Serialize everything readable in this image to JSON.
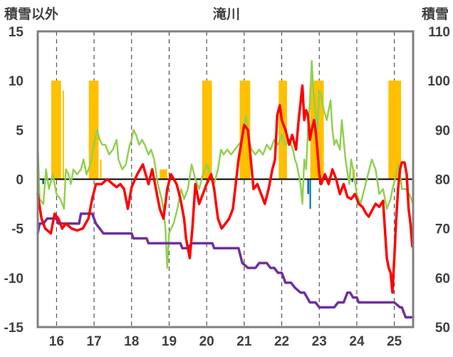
{
  "chart_data": {
    "type": "line",
    "title": "滝川",
    "left_axis_label": "積雪以外",
    "right_axis_label": "積雪",
    "x_ticks": [
      "16",
      "17",
      "18",
      "19",
      "20",
      "21",
      "22",
      "23",
      "24",
      "25"
    ],
    "xlim": [
      15.5,
      25.5
    ],
    "ylim_left": [
      -15,
      15
    ],
    "ylim_right": [
      50,
      110
    ],
    "left_ticks": [
      "15",
      "10",
      "5",
      "0",
      "-5",
      "-10",
      "-15"
    ],
    "right_ticks": [
      "110",
      "100",
      "90",
      "80",
      "70",
      "60",
      "50"
    ],
    "grid": "dashed vertical lines at day boundaries",
    "colors": {
      "red": "#ff0000",
      "green": "#92d050",
      "purple": "#7030a0",
      "orange": "#ffc000",
      "blue": "#0070c0",
      "axis": "#808080"
    },
    "series": [
      {
        "color": "red",
        "axis": "left",
        "points": [
          [
            15.5,
            -1.5
          ],
          [
            15.6,
            -4.0
          ],
          [
            15.7,
            -5.0
          ],
          [
            15.85,
            -5.5
          ],
          [
            15.95,
            -3.5
          ],
          [
            16.05,
            -4.0
          ],
          [
            16.15,
            -5.0
          ],
          [
            16.25,
            -4.5
          ],
          [
            16.4,
            -5.0
          ],
          [
            16.55,
            -5.2
          ],
          [
            16.7,
            -5.0
          ],
          [
            16.85,
            -4.0
          ],
          [
            16.95,
            -2.0
          ],
          [
            17.05,
            -0.5
          ],
          [
            17.2,
            -0.5
          ],
          [
            17.35,
            0.0
          ],
          [
            17.5,
            -0.5
          ],
          [
            17.6,
            -0.8
          ],
          [
            17.7,
            -0.5
          ],
          [
            17.8,
            -1.0
          ],
          [
            17.9,
            -3.0
          ],
          [
            18.0,
            -0.8
          ],
          [
            18.15,
            0.5
          ],
          [
            18.3,
            1.5
          ],
          [
            18.45,
            -0.5
          ],
          [
            18.55,
            1.0
          ],
          [
            18.65,
            -1.0
          ],
          [
            18.75,
            -3.0
          ],
          [
            18.85,
            -4.0
          ],
          [
            18.95,
            -1.0
          ],
          [
            19.05,
            0.5
          ],
          [
            19.2,
            -0.5
          ],
          [
            19.3,
            -2.0
          ],
          [
            19.4,
            -4.0
          ],
          [
            19.45,
            -6.0
          ],
          [
            19.55,
            -8.0
          ],
          [
            19.62,
            -5.0
          ],
          [
            19.7,
            -0.5
          ],
          [
            19.8,
            -2.5
          ],
          [
            19.9,
            -1.5
          ],
          [
            20.0,
            -0.5
          ],
          [
            20.12,
            0.5
          ],
          [
            20.2,
            -1.0
          ],
          [
            20.3,
            -4.0
          ],
          [
            20.4,
            -5.0
          ],
          [
            20.5,
            -4.5
          ],
          [
            20.6,
            -4.0
          ],
          [
            20.7,
            -3.0
          ],
          [
            20.85,
            2.0
          ],
          [
            21.0,
            5.5
          ],
          [
            21.1,
            5.0
          ],
          [
            21.2,
            1.0
          ],
          [
            21.25,
            -1.0
          ],
          [
            21.35,
            -0.5
          ],
          [
            21.45,
            -1.5
          ],
          [
            21.55,
            -2.5
          ],
          [
            21.65,
            -1.0
          ],
          [
            21.75,
            1.0
          ],
          [
            21.82,
            2.0
          ],
          [
            21.88,
            6.5
          ],
          [
            21.95,
            7.5
          ],
          [
            22.0,
            6.0
          ],
          [
            22.1,
            5.0
          ],
          [
            22.2,
            3.5
          ],
          [
            22.28,
            4.5
          ],
          [
            22.38,
            3.0
          ],
          [
            22.45,
            6.0
          ],
          [
            22.55,
            9.5
          ],
          [
            22.6,
            6.0
          ],
          [
            22.65,
            7.0
          ],
          [
            22.7,
            6.5
          ],
          [
            22.75,
            4.0
          ],
          [
            22.8,
            5.0
          ],
          [
            22.86,
            6.0
          ],
          [
            22.9,
            5.0
          ],
          [
            22.95,
            3.0
          ],
          [
            23.0,
            0.5
          ],
          [
            23.05,
            -0.5
          ],
          [
            23.15,
            0.5
          ],
          [
            23.25,
            -0.5
          ],
          [
            23.35,
            1.0
          ],
          [
            23.45,
            0.0
          ],
          [
            23.55,
            -1.5
          ],
          [
            23.65,
            -0.5
          ],
          [
            23.75,
            -1.8
          ],
          [
            23.85,
            -2.0
          ],
          [
            23.95,
            -1.5
          ],
          [
            24.05,
            -2.5
          ],
          [
            24.15,
            -2.8
          ],
          [
            24.25,
            -3.5
          ],
          [
            24.32,
            -3.8
          ],
          [
            24.4,
            -3.2
          ],
          [
            24.5,
            -2.5
          ],
          [
            24.6,
            -2.8
          ],
          [
            24.7,
            -2.2
          ],
          [
            24.8,
            -8.0
          ],
          [
            24.85,
            -9.0
          ],
          [
            24.9,
            -9.5
          ],
          [
            24.95,
            -11.5
          ],
          [
            25.0,
            -8.0
          ],
          [
            25.05,
            -4.0
          ],
          [
            25.1,
            -1.0
          ],
          [
            25.15,
            1.0
          ],
          [
            25.2,
            1.7
          ],
          [
            25.27,
            1.7
          ],
          [
            25.33,
            0.5
          ],
          [
            25.38,
            -3.0
          ],
          [
            25.43,
            -4.5
          ],
          [
            25.48,
            -6.8
          ]
        ]
      },
      {
        "color": "green",
        "axis": "left",
        "points": [
          [
            15.5,
            3.5
          ],
          [
            15.55,
            -2.0
          ],
          [
            15.65,
            -2.5
          ],
          [
            15.72,
            1.0
          ],
          [
            15.8,
            -1.0
          ],
          [
            15.9,
            0.5
          ],
          [
            16.0,
            -1.5
          ],
          [
            16.1,
            -2.0
          ],
          [
            16.2,
            -3.0
          ],
          [
            16.25,
            1.0
          ],
          [
            16.32,
            0.5
          ],
          [
            16.38,
            -0.5
          ],
          [
            16.45,
            1.0
          ],
          [
            16.55,
            0.5
          ],
          [
            16.65,
            1.0
          ],
          [
            16.72,
            2.0
          ],
          [
            16.8,
            0.5
          ],
          [
            16.9,
            1.5
          ],
          [
            17.0,
            3.5
          ],
          [
            17.08,
            5.0
          ],
          [
            17.15,
            4.0
          ],
          [
            17.22,
            3.5
          ],
          [
            17.3,
            3.5
          ],
          [
            17.4,
            2.5
          ],
          [
            17.5,
            3.0
          ],
          [
            17.6,
            4.0
          ],
          [
            17.65,
            2.0
          ],
          [
            17.75,
            1.0
          ],
          [
            17.85,
            1.5
          ],
          [
            17.95,
            3.5
          ],
          [
            18.0,
            4.0
          ],
          [
            18.05,
            5.0
          ],
          [
            18.12,
            4.5
          ],
          [
            18.2,
            3.5
          ],
          [
            18.28,
            4.0
          ],
          [
            18.35,
            3.5
          ],
          [
            18.45,
            2.5
          ],
          [
            18.52,
            3.0
          ],
          [
            18.6,
            2.0
          ],
          [
            18.7,
            -0.5
          ],
          [
            18.8,
            -2.0
          ],
          [
            18.85,
            -3.0
          ],
          [
            18.9,
            -5.0
          ],
          [
            18.95,
            -9.0
          ],
          [
            19.0,
            -5.5
          ],
          [
            19.05,
            -5.0
          ],
          [
            19.12,
            -4.5
          ],
          [
            19.22,
            -3.0
          ],
          [
            19.32,
            -1.0
          ],
          [
            19.4,
            -2.0
          ],
          [
            19.5,
            -1.0
          ],
          [
            19.6,
            1.5
          ],
          [
            19.7,
            0.0
          ],
          [
            19.8,
            -1.0
          ],
          [
            19.9,
            0.5
          ],
          [
            20.0,
            1.5
          ],
          [
            20.1,
            0.5
          ],
          [
            20.2,
            -0.5
          ],
          [
            20.3,
            1.0
          ],
          [
            20.38,
            3.0
          ],
          [
            20.45,
            2.5
          ],
          [
            20.55,
            3.0
          ],
          [
            20.65,
            2.5
          ],
          [
            20.75,
            3.0
          ],
          [
            20.85,
            3.5
          ],
          [
            20.95,
            4.0
          ],
          [
            21.05,
            6.5
          ],
          [
            21.12,
            4.0
          ],
          [
            21.2,
            3.0
          ],
          [
            21.3,
            2.5
          ],
          [
            21.4,
            3.0
          ],
          [
            21.5,
            2.5
          ],
          [
            21.6,
            3.5
          ],
          [
            21.7,
            3.0
          ],
          [
            21.8,
            4.0
          ],
          [
            21.9,
            3.5
          ],
          [
            22.0,
            4.5
          ],
          [
            22.1,
            3.5
          ],
          [
            22.2,
            4.0
          ],
          [
            22.3,
            3.0
          ],
          [
            22.35,
            2.0
          ],
          [
            22.4,
            1.5
          ],
          [
            22.5,
            -0.5
          ],
          [
            22.55,
            -2.5
          ],
          [
            22.6,
            2.0
          ],
          [
            22.65,
            1.0
          ],
          [
            22.7,
            5.0
          ],
          [
            22.75,
            8.0
          ],
          [
            22.8,
            12.0
          ],
          [
            22.85,
            8.5
          ],
          [
            22.9,
            7.0
          ],
          [
            22.95,
            5.0
          ],
          [
            23.0,
            9.0
          ],
          [
            23.05,
            8.5
          ],
          [
            23.12,
            7.0
          ],
          [
            23.2,
            6.0
          ],
          [
            23.3,
            8.0
          ],
          [
            23.35,
            5.0
          ],
          [
            23.4,
            3.5
          ],
          [
            23.45,
            4.0
          ],
          [
            23.55,
            3.0
          ],
          [
            23.6,
            6.0
          ],
          [
            23.7,
            2.0
          ],
          [
            23.8,
            -0.5
          ],
          [
            23.85,
            2.0
          ],
          [
            23.9,
            1.0
          ],
          [
            24.0,
            -1.5
          ],
          [
            24.05,
            -2.0
          ],
          [
            24.1,
            -2.5
          ],
          [
            24.2,
            -1.0
          ],
          [
            24.3,
            0.5
          ],
          [
            24.4,
            2.0
          ],
          [
            24.5,
            1.0
          ],
          [
            24.6,
            -1.5
          ],
          [
            24.7,
            -1.0
          ],
          [
            24.8,
            -3.0
          ],
          [
            24.9,
            -2.0
          ],
          [
            24.95,
            -1.0
          ],
          [
            25.05,
            0.5
          ],
          [
            25.12,
            1.5
          ],
          [
            25.2,
            -1.0
          ],
          [
            25.3,
            -1.0
          ],
          [
            25.4,
            -1.5
          ],
          [
            25.5,
            -2.5
          ]
        ]
      },
      {
        "color": "purple",
        "axis": "right",
        "points": [
          [
            15.5,
            69
          ],
          [
            15.55,
            71
          ],
          [
            15.65,
            71
          ],
          [
            15.75,
            72
          ],
          [
            16.0,
            72
          ],
          [
            16.05,
            71
          ],
          [
            16.6,
            71
          ],
          [
            16.65,
            73
          ],
          [
            16.95,
            73
          ],
          [
            17.05,
            71
          ],
          [
            17.25,
            69
          ],
          [
            17.8,
            69
          ],
          [
            17.85,
            69
          ],
          [
            18.0,
            69
          ],
          [
            18.05,
            68
          ],
          [
            18.4,
            68
          ],
          [
            18.45,
            67
          ],
          [
            19.3,
            67
          ],
          [
            19.35,
            66
          ],
          [
            19.5,
            66
          ],
          [
            19.6,
            67
          ],
          [
            20.15,
            67
          ],
          [
            20.2,
            66
          ],
          [
            20.85,
            66
          ],
          [
            20.95,
            63
          ],
          [
            21.1,
            62
          ],
          [
            21.3,
            62
          ],
          [
            21.4,
            63
          ],
          [
            21.6,
            63
          ],
          [
            21.7,
            62
          ],
          [
            21.8,
            62
          ],
          [
            21.9,
            61
          ],
          [
            22.0,
            61
          ],
          [
            22.1,
            59
          ],
          [
            22.25,
            59
          ],
          [
            22.35,
            58
          ],
          [
            22.5,
            57
          ],
          [
            22.6,
            57
          ],
          [
            22.75,
            55
          ],
          [
            22.9,
            55
          ],
          [
            23.0,
            54
          ],
          [
            23.4,
            54
          ],
          [
            23.5,
            55
          ],
          [
            23.55,
            55
          ],
          [
            23.65,
            55
          ],
          [
            23.75,
            57
          ],
          [
            23.82,
            57
          ],
          [
            23.9,
            56
          ],
          [
            24.0,
            56
          ],
          [
            24.05,
            55
          ],
          [
            24.5,
            55
          ],
          [
            24.6,
            55
          ],
          [
            24.9,
            55
          ],
          [
            25.0,
            55
          ],
          [
            25.15,
            54
          ],
          [
            25.2,
            54
          ],
          [
            25.3,
            52
          ],
          [
            25.5,
            52
          ]
        ]
      }
    ],
    "bars": [
      {
        "color": "orange",
        "axis": "left",
        "ranges": [
          [
            15.86,
            16.12,
            10.0
          ],
          [
            16.16,
            16.2,
            9.0
          ],
          [
            16.86,
            17.12,
            10.0
          ],
          [
            17.16,
            17.2,
            2.0
          ],
          [
            18.75,
            18.95,
            1.0
          ],
          [
            19.88,
            20.14,
            10.0
          ],
          [
            20.88,
            21.16,
            10.0
          ],
          [
            21.92,
            22.14,
            10.0
          ],
          [
            22.76,
            23.12,
            10.0
          ],
          [
            23.88,
            23.95,
            1.0
          ],
          [
            24.84,
            25.18,
            10.0
          ]
        ]
      },
      {
        "color": "blue",
        "axis": "left",
        "ranges": [
          [
            15.62,
            15.67,
            -0.5
          ],
          [
            22.68,
            22.73,
            -1.5
          ],
          [
            22.74,
            22.78,
            -3.0
          ],
          [
            23.86,
            23.9,
            -0.3
          ]
        ]
      }
    ]
  }
}
